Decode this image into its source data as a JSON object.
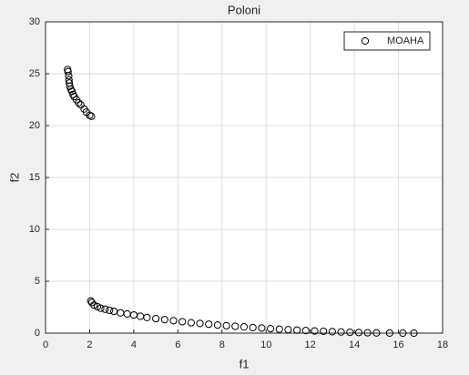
{
  "chart_data": {
    "type": "scatter",
    "title": "Poloni",
    "x_label": "f1",
    "y_label": "f2",
    "xlim": [
      0,
      18
    ],
    "ylim": [
      0,
      30
    ],
    "xticks": [
      0,
      2,
      4,
      6,
      8,
      10,
      12,
      14,
      16,
      18
    ],
    "yticks": [
      0,
      5,
      10,
      15,
      20,
      25,
      30
    ],
    "grid": true,
    "legend": "upper right",
    "series": [
      {
        "name": "MOAHA",
        "color": "#000000",
        "x": [
          1.0,
          1.02,
          1.05,
          1.06,
          1.08,
          1.1,
          1.15,
          1.2,
          1.25,
          1.3,
          1.4,
          1.5,
          1.6,
          1.75,
          1.85,
          2.0,
          2.08,
          2.05,
          2.1,
          2.2,
          2.35,
          2.5,
          2.7,
          2.9,
          3.1,
          3.4,
          3.7,
          4.0,
          4.3,
          4.6,
          5.0,
          5.4,
          5.8,
          6.2,
          6.6,
          7.0,
          7.4,
          7.8,
          8.2,
          8.6,
          9.0,
          9.4,
          9.8,
          10.2,
          10.6,
          11.0,
          11.4,
          11.8,
          12.2,
          12.6,
          13.0,
          13.4,
          13.8,
          14.2,
          14.6,
          15.0,
          15.6,
          16.2,
          16.7
        ],
        "values": [
          25.4,
          25.2,
          24.8,
          24.4,
          24.1,
          23.8,
          23.5,
          23.3,
          23.0,
          22.8,
          22.5,
          22.2,
          22.0,
          21.6,
          21.3,
          21.0,
          20.9,
          3.1,
          2.95,
          2.7,
          2.55,
          2.4,
          2.3,
          2.2,
          2.1,
          1.95,
          1.85,
          1.75,
          1.62,
          1.5,
          1.4,
          1.3,
          1.2,
          1.1,
          1.0,
          0.93,
          0.86,
          0.78,
          0.72,
          0.66,
          0.6,
          0.54,
          0.49,
          0.43,
          0.38,
          0.33,
          0.29,
          0.25,
          0.21,
          0.18,
          0.14,
          0.11,
          0.08,
          0.06,
          0.04,
          0.02,
          0.01,
          0,
          0
        ]
      }
    ]
  }
}
